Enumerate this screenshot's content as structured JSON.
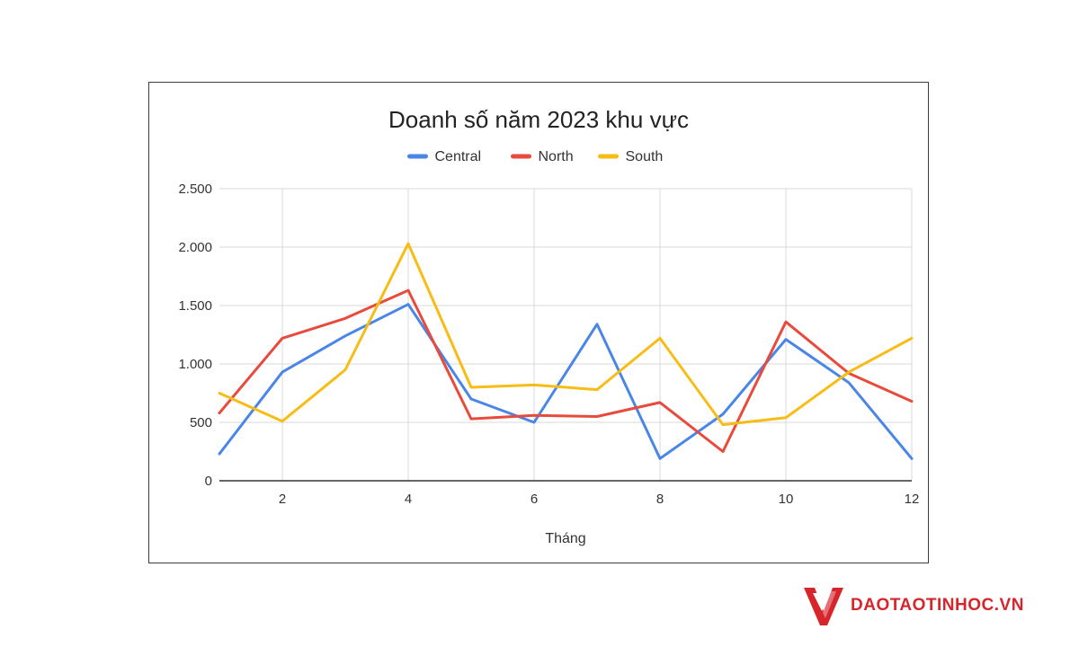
{
  "colors": {
    "Central": "#4a86e8",
    "North": "#e84a3c",
    "South": "#f7bd16",
    "grid": "#d9d9d9",
    "baseline": "#333333",
    "logo": "#d6262b"
  },
  "logo": {
    "text": "DAOTAOTINHOC.VN",
    "icon": "logo-v-icon"
  },
  "chart_data": {
    "type": "line",
    "title": "Doanh số năm 2023 khu vực",
    "xlabel": "Tháng",
    "ylabel": "",
    "x": [
      1,
      2,
      3,
      4,
      5,
      6,
      7,
      8,
      9,
      10,
      11,
      12
    ],
    "xlim": [
      1,
      12
    ],
    "ylim": [
      0,
      2500
    ],
    "x_ticks": [
      2,
      4,
      6,
      8,
      10,
      12
    ],
    "x_tick_labels": [
      "2",
      "4",
      "6",
      "8",
      "10",
      "12"
    ],
    "y_ticks": [
      0,
      500,
      1000,
      1500,
      2000,
      2500
    ],
    "y_tick_labels": [
      "0",
      "500",
      "1.000",
      "1.500",
      "2.000",
      "2.500"
    ],
    "grid": true,
    "legend_position": "top-center",
    "series": [
      {
        "name": "Central",
        "values": [
          230,
          930,
          1240,
          1510,
          700,
          500,
          1340,
          190,
          570,
          1210,
          840,
          190
        ]
      },
      {
        "name": "North",
        "values": [
          580,
          1220,
          1390,
          1630,
          530,
          560,
          550,
          670,
          250,
          1360,
          920,
          680
        ]
      },
      {
        "name": "South",
        "values": [
          750,
          510,
          950,
          2030,
          800,
          820,
          780,
          1220,
          480,
          540,
          930,
          1220
        ]
      }
    ]
  }
}
